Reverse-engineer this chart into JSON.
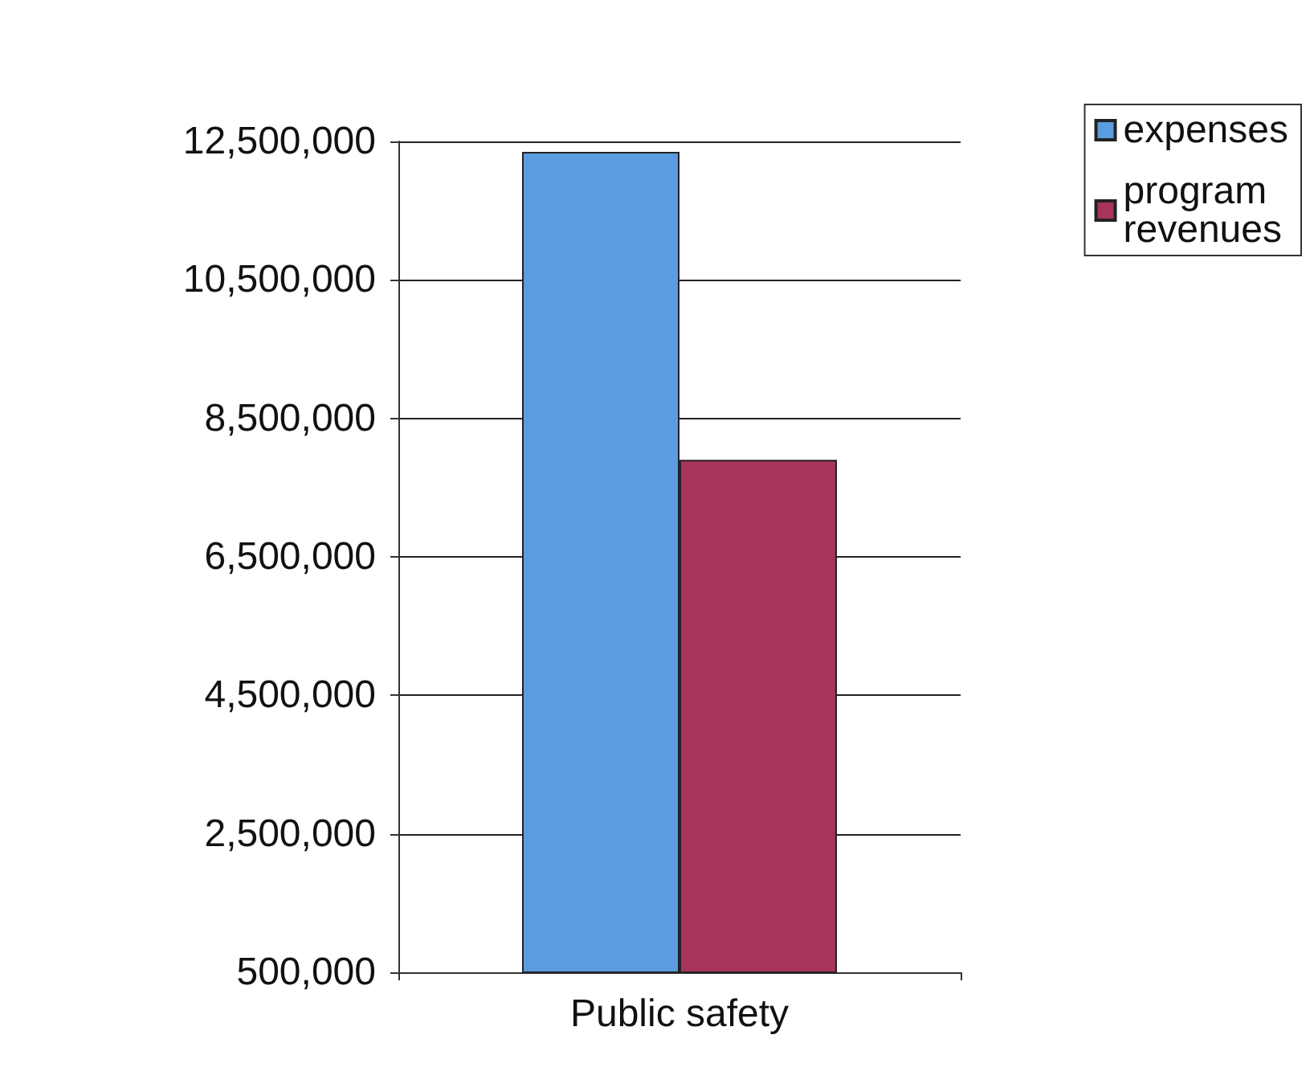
{
  "chart_data": {
    "type": "bar",
    "categories": [
      "Public safety"
    ],
    "series": [
      {
        "name": "expenses",
        "color": "#5b9be0",
        "values": [
          12350000
        ]
      },
      {
        "name": "program revenues",
        "color": "#a8345e",
        "values": [
          7900000
        ]
      }
    ],
    "ylim": [
      500000,
      12500000
    ],
    "yticks": [
      {
        "value": 500000,
        "label": "500,000"
      },
      {
        "value": 2500000,
        "label": "2,500,000"
      },
      {
        "value": 4500000,
        "label": "4,500,000"
      },
      {
        "value": 6500000,
        "label": "6,500,000"
      },
      {
        "value": 8500000,
        "label": "8,500,000"
      },
      {
        "value": 10500000,
        "label": "10,500,000"
      },
      {
        "value": 12500000,
        "label": "12,500,000"
      }
    ],
    "grid": "y",
    "legend": "top right"
  }
}
